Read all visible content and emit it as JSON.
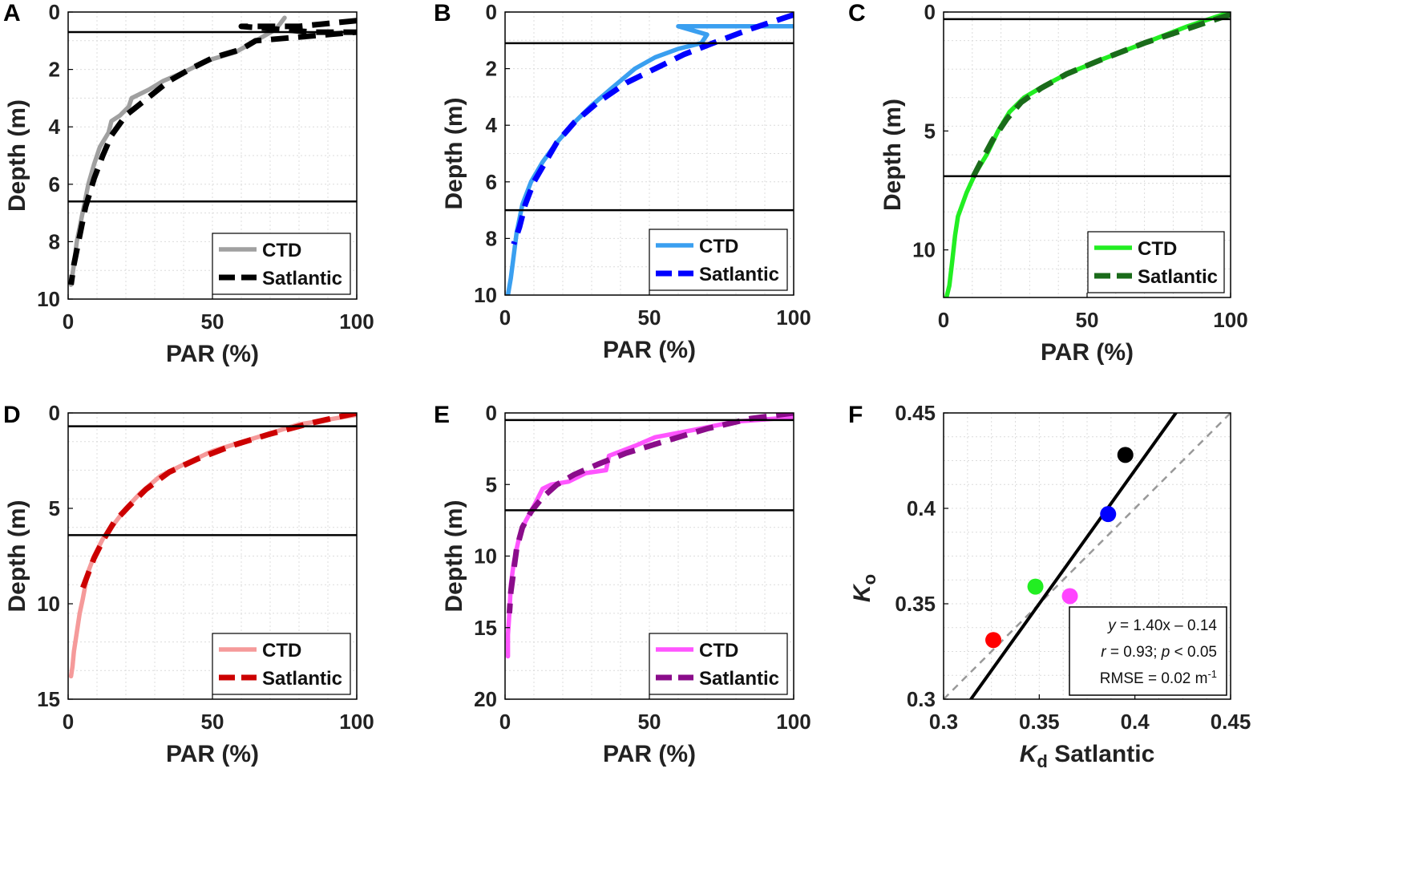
{
  "chart_data": [
    {
      "panel": "A",
      "type": "line",
      "xlabel": "PAR (%)",
      "ylabel": "Depth (m)",
      "xlim": [
        0,
        100
      ],
      "ylim": [
        0,
        10
      ],
      "y_reversed": true,
      "xticks": [
        "0",
        "50",
        "100"
      ],
      "yticks": [
        "0",
        "2",
        "4",
        "6",
        "8",
        "10"
      ],
      "xtick_values": [
        0,
        50,
        100
      ],
      "ytick_values": [
        0,
        2,
        4,
        6,
        8,
        10
      ],
      "hlines": [
        0.7,
        6.6
      ],
      "legend": {
        "position": "bottom-right",
        "entries": [
          "CTD",
          "Satlantic"
        ]
      },
      "series": [
        {
          "name": "CTD",
          "color": "#a0a0a0",
          "style": "solid",
          "points": [
            [
              75,
              0.2
            ],
            [
              72,
              0.6
            ],
            [
              65,
              1.0
            ],
            [
              58,
              1.4
            ],
            [
              48,
              1.7
            ],
            [
              40,
              2.1
            ],
            [
              33,
              2.4
            ],
            [
              28,
              2.7
            ],
            [
              22,
              3.0
            ],
            [
              21,
              3.3
            ],
            [
              18,
              3.6
            ],
            [
              15,
              3.8
            ],
            [
              14,
              4.2
            ],
            [
              11,
              4.7
            ],
            [
              9,
              5.3
            ],
            [
              7,
              6.0
            ],
            [
              5,
              7.0
            ],
            [
              3,
              8.0
            ],
            [
              2,
              8.8
            ],
            [
              1,
              9.5
            ]
          ]
        },
        {
          "name": "Satlantic",
          "color": "#000000",
          "style": "dashed",
          "points": [
            [
              100,
              0.3
            ],
            [
              80,
              0.5
            ],
            [
              60,
              0.5
            ],
            [
              85,
              0.7
            ],
            [
              100,
              0.7
            ],
            [
              65,
              1.0
            ],
            [
              60,
              1.3
            ],
            [
              50,
              1.6
            ],
            [
              42,
              2.0
            ],
            [
              35,
              2.4
            ],
            [
              30,
              2.8
            ],
            [
              25,
              3.2
            ],
            [
              20,
              3.6
            ],
            [
              15,
              4.3
            ],
            [
              12,
              5.0
            ],
            [
              9,
              5.8
            ],
            [
              6,
              6.8
            ],
            [
              4,
              7.8
            ],
            [
              2,
              8.8
            ],
            [
              1,
              9.5
            ]
          ]
        }
      ]
    },
    {
      "panel": "B",
      "type": "line",
      "xlabel": "PAR (%)",
      "ylabel": "Depth (m)",
      "xlim": [
        0,
        100
      ],
      "ylim": [
        0,
        10
      ],
      "y_reversed": true,
      "xticks": [
        "0",
        "50",
        "100"
      ],
      "yticks": [
        "0",
        "2",
        "4",
        "6",
        "8",
        "10"
      ],
      "xtick_values": [
        0,
        50,
        100
      ],
      "ytick_values": [
        0,
        2,
        4,
        6,
        8,
        10
      ],
      "hlines": [
        1.1,
        7.0
      ],
      "legend": {
        "position": "bottom-right",
        "entries": [
          "CTD",
          "Satlantic"
        ]
      },
      "series": [
        {
          "name": "CTD",
          "color": "#3a9ff0",
          "style": "solid",
          "points": [
            [
              100,
              0.5
            ],
            [
              80,
              0.5
            ],
            [
              60,
              0.5
            ],
            [
              70,
              0.8
            ],
            [
              68,
              1.1
            ],
            [
              60,
              1.3
            ],
            [
              52,
              1.6
            ],
            [
              45,
              2.0
            ],
            [
              38,
              2.6
            ],
            [
              30,
              3.3
            ],
            [
              24,
              3.9
            ],
            [
              18,
              4.6
            ],
            [
              13,
              5.3
            ],
            [
              9,
              6.0
            ],
            [
              6,
              6.8
            ],
            [
              4,
              7.8
            ],
            [
              3,
              8.6
            ],
            [
              2,
              9.4
            ],
            [
              1,
              10.0
            ]
          ]
        },
        {
          "name": "Satlantic",
          "color": "#0000ff",
          "style": "dashed",
          "points": [
            [
              100,
              0.1
            ],
            [
              85,
              0.6
            ],
            [
              72,
              1.1
            ],
            [
              62,
              1.5
            ],
            [
              52,
              2.0
            ],
            [
              42,
              2.5
            ],
            [
              32,
              3.2
            ],
            [
              24,
              3.9
            ],
            [
              18,
              4.6
            ],
            [
              14,
              5.3
            ],
            [
              10,
              6.0
            ],
            [
              7,
              6.8
            ],
            [
              5,
              7.6
            ],
            [
              3,
              8.2
            ]
          ]
        }
      ]
    },
    {
      "panel": "C",
      "type": "line",
      "xlabel": "PAR (%)",
      "ylabel": "Depth (m)",
      "xlim": [
        0,
        100
      ],
      "ylim": [
        0,
        12
      ],
      "y_reversed": true,
      "xticks": [
        "0",
        "50",
        "100"
      ],
      "yticks": [
        "0",
        "5",
        "10"
      ],
      "xtick_values": [
        0,
        50,
        100
      ],
      "ytick_values": [
        0,
        5,
        10
      ],
      "hlines": [
        0.3,
        6.9
      ],
      "legend": {
        "position": "bottom-right",
        "entries": [
          "CTD",
          "Satlantic"
        ]
      },
      "series": [
        {
          "name": "CTD",
          "color": "#22ee22",
          "style": "solid",
          "points": [
            [
              100,
              0.0
            ],
            [
              85,
              0.6
            ],
            [
              70,
              1.3
            ],
            [
              55,
              2.0
            ],
            [
              43,
              2.6
            ],
            [
              35,
              3.1
            ],
            [
              28,
              3.6
            ],
            [
              23,
              4.2
            ],
            [
              19,
              5.0
            ],
            [
              15,
              6.0
            ],
            [
              11,
              6.8
            ],
            [
              8,
              7.6
            ],
            [
              5,
              8.6
            ],
            [
              4,
              9.4
            ],
            [
              3,
              10.5
            ],
            [
              2,
              11.5
            ],
            [
              1,
              12.0
            ]
          ]
        },
        {
          "name": "Satlantic",
          "color": "#1a6b1a",
          "style": "dashed",
          "points": [
            [
              100,
              0.1
            ],
            [
              85,
              0.7
            ],
            [
              70,
              1.3
            ],
            [
              55,
              2.0
            ],
            [
              43,
              2.6
            ],
            [
              34,
              3.2
            ],
            [
              27,
              3.8
            ],
            [
              22,
              4.5
            ],
            [
              17,
              5.4
            ],
            [
              13,
              6.3
            ],
            [
              10,
              7.0
            ]
          ]
        }
      ]
    },
    {
      "panel": "D",
      "type": "line",
      "xlabel": "PAR (%)",
      "ylabel": "Depth (m)",
      "xlim": [
        0,
        100
      ],
      "ylim": [
        0,
        15
      ],
      "y_reversed": true,
      "xticks": [
        "0",
        "50",
        "100"
      ],
      "yticks": [
        "0",
        "5",
        "10",
        "15"
      ],
      "xtick_values": [
        0,
        50,
        100
      ],
      "ytick_values": [
        0,
        5,
        10,
        15
      ],
      "hlines": [
        0.7,
        6.4
      ],
      "legend": {
        "position": "bottom-right",
        "entries": [
          "CTD",
          "Satlantic"
        ]
      },
      "series": [
        {
          "name": "CTD",
          "color": "#f59a9a",
          "style": "solid",
          "points": [
            [
              100,
              0.1
            ],
            [
              80,
              0.6
            ],
            [
              65,
              1.3
            ],
            [
              50,
              2.0
            ],
            [
              40,
              2.7
            ],
            [
              32,
              3.3
            ],
            [
              25,
              4.2
            ],
            [
              20,
              5.0
            ],
            [
              16,
              5.8
            ],
            [
              12,
              6.6
            ],
            [
              9,
              7.5
            ],
            [
              7,
              8.3
            ],
            [
              6,
              9.0
            ],
            [
              5,
              9.8
            ],
            [
              4,
              10.5
            ],
            [
              3,
              11.5
            ],
            [
              2,
              12.5
            ],
            [
              1.5,
              13.3
            ],
            [
              1,
              13.8
            ]
          ]
        },
        {
          "name": "Satlantic",
          "color": "#cc0000",
          "style": "dashed",
          "points": [
            [
              100,
              0.0
            ],
            [
              85,
              0.5
            ],
            [
              70,
              1.1
            ],
            [
              57,
              1.7
            ],
            [
              45,
              2.4
            ],
            [
              35,
              3.1
            ],
            [
              27,
              4.0
            ],
            [
              21,
              4.9
            ],
            [
              16,
              5.7
            ],
            [
              12,
              6.7
            ],
            [
              9,
              7.6
            ],
            [
              7,
              8.4
            ],
            [
              5,
              9.2
            ]
          ]
        }
      ]
    },
    {
      "panel": "E",
      "type": "line",
      "xlabel": "PAR (%)",
      "ylabel": "Depth (m)",
      "xlim": [
        0,
        100
      ],
      "ylim": [
        0,
        20
      ],
      "y_reversed": true,
      "xticks": [
        "0",
        "50",
        "100"
      ],
      "yticks": [
        "0",
        "5",
        "10",
        "15",
        "20"
      ],
      "xtick_values": [
        0,
        50,
        100
      ],
      "ytick_values": [
        0,
        5,
        10,
        15,
        20
      ],
      "hlines": [
        0.5,
        6.8
      ],
      "legend": {
        "position": "bottom-right",
        "entries": [
          "CTD",
          "Satlantic"
        ]
      },
      "series": [
        {
          "name": "CTD",
          "color": "#ff55ff",
          "style": "solid",
          "points": [
            [
              100,
              0.3
            ],
            [
              80,
              0.6
            ],
            [
              65,
              1.2
            ],
            [
              52,
              1.7
            ],
            [
              45,
              2.3
            ],
            [
              36,
              3.0
            ],
            [
              35,
              4.0
            ],
            [
              28,
              4.2
            ],
            [
              22,
              4.8
            ],
            [
              16,
              5.0
            ],
            [
              13,
              5.3
            ],
            [
              10,
              6.5
            ],
            [
              7,
              7.6
            ],
            [
              5,
              8.6
            ],
            [
              4,
              9.5
            ],
            [
              3,
              10.5
            ],
            [
              2,
              12.0
            ],
            [
              1.5,
              14.0
            ],
            [
              1,
              15.5
            ],
            [
              1,
              17.0
            ]
          ]
        },
        {
          "name": "Satlantic",
          "color": "#8a0c8a",
          "style": "dashed",
          "points": [
            [
              100,
              0.0
            ],
            [
              85,
              0.4
            ],
            [
              70,
              1.1
            ],
            [
              55,
              2.0
            ],
            [
              42,
              2.8
            ],
            [
              32,
              3.6
            ],
            [
              24,
              4.3
            ],
            [
              18,
              5.0
            ],
            [
              13,
              5.9
            ],
            [
              9,
              6.9
            ],
            [
              6,
              8.0
            ],
            [
              4,
              9.5
            ],
            [
              3,
              11.0
            ],
            [
              2,
              12.5
            ],
            [
              1.5,
              14.0
            ]
          ]
        }
      ]
    },
    {
      "panel": "F",
      "type": "scatter",
      "xlabel_main": "K",
      "xlabel_sub": "d",
      "xlabel_rest": " Satlantic",
      "ylabel_main": "K",
      "ylabel_sub": "o",
      "xlim": [
        0.3,
        0.45
      ],
      "ylim": [
        0.3,
        0.45
      ],
      "xticks": [
        "0.3",
        "0.35",
        "0.4",
        "0.45"
      ],
      "yticks": [
        "0.3",
        "0.35",
        "0.4",
        "0.45"
      ],
      "xtick_values": [
        0.3,
        0.35,
        0.4,
        0.45
      ],
      "ytick_values": [
        0.3,
        0.35,
        0.4,
        0.45
      ],
      "points": [
        {
          "x": 0.395,
          "y": 0.428,
          "color": "#000000"
        },
        {
          "x": 0.386,
          "y": 0.397,
          "color": "#0000ff"
        },
        {
          "x": 0.348,
          "y": 0.359,
          "color": "#22ee22"
        },
        {
          "x": 0.366,
          "y": 0.354,
          "color": "#ff44ff"
        },
        {
          "x": 0.326,
          "y": 0.331,
          "color": "#ff0000"
        }
      ],
      "fit_line": {
        "slope": 1.4,
        "intercept": -0.14,
        "color": "#000000"
      },
      "one_to_one_line": {
        "color": "#999999",
        "style": "dashed"
      },
      "annotation": {
        "eq_y": "y",
        "eq_rest": " = 1.40x – 0.14",
        "r_sym": "r",
        "r_rest": " = 0.93; ",
        "p_sym": "p",
        "p_rest": " < 0.05",
        "rmse": "RMSE = 0.02 m",
        "rmse_sup": "-1",
        "position": "bottom-right"
      }
    }
  ]
}
